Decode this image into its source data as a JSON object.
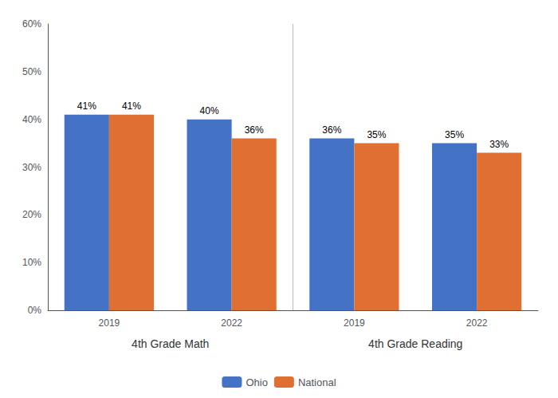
{
  "chart_data": {
    "type": "bar",
    "categories": [
      "2019",
      "2022",
      "2019",
      "2022"
    ],
    "sections": [
      "4th Grade Math",
      "4th Grade Math",
      "4th Grade Reading",
      "4th Grade Reading"
    ],
    "series": [
      {
        "name": "Ohio",
        "color": "#4472C4",
        "values": [
          41,
          40,
          36,
          35
        ],
        "value_labels": [
          "41%",
          "40%",
          "36%",
          "35%"
        ]
      },
      {
        "name": "National",
        "color": "#E07031",
        "values": [
          41,
          36,
          35,
          33
        ],
        "value_labels": [
          "41%",
          "36%",
          "35%",
          "33%"
        ]
      }
    ],
    "ylim": [
      0,
      60
    ],
    "yticks": [
      {
        "value": 0,
        "label": "0%"
      },
      {
        "value": 10,
        "label": "10%"
      },
      {
        "value": 20,
        "label": "20%"
      },
      {
        "value": 30,
        "label": "30%"
      },
      {
        "value": 40,
        "label": "40%"
      },
      {
        "value": 50,
        "label": "50%"
      },
      {
        "value": 60,
        "label": "60%"
      }
    ],
    "grid": false,
    "legend": "bottom",
    "data_labels": true
  }
}
